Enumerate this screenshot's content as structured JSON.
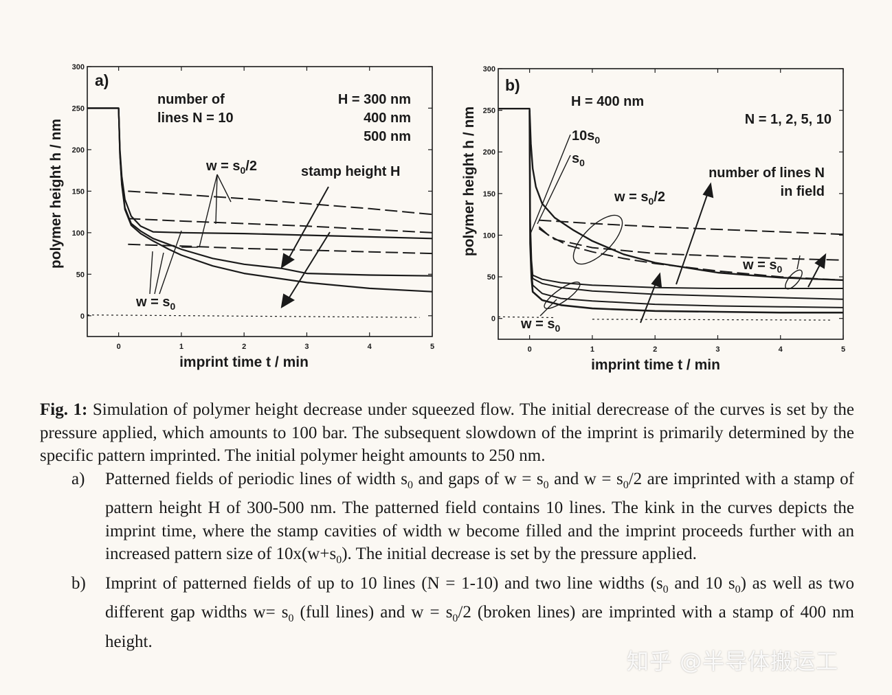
{
  "chart_data": [
    {
      "type": "line",
      "panel_label": "a)",
      "xlabel": "imprint time t / min",
      "ylabel": "polymer height h / nm",
      "xlim": [
        -0.5,
        5
      ],
      "ylim": [
        -25,
        300
      ],
      "xticks": [
        0,
        1,
        2,
        3,
        4,
        5
      ],
      "yticks": [
        0,
        50,
        100,
        150,
        200,
        250,
        300
      ],
      "annotations": {
        "lines_n": [
          "number of",
          "lines N = 10"
        ],
        "heights": [
          "H = 300 nm",
          "400 nm",
          "500 nm"
        ],
        "stamp": "stamp height H",
        "w_half": "w = s0/2",
        "w_full": "w = s0"
      },
      "series": [
        {
          "style": "solid",
          "width": 2.2,
          "points": [
            [
              -0.5,
              250
            ],
            [
              0,
              250
            ],
            [
              0.02,
              200
            ],
            [
              0.05,
              168
            ],
            [
              0.1,
              140
            ],
            [
              0.2,
              120
            ],
            [
              0.35,
              108
            ],
            [
              0.55,
              101
            ],
            [
              1,
              100
            ],
            [
              2,
              99
            ],
            [
              3,
              97
            ],
            [
              4,
              95
            ],
            [
              5,
              93
            ]
          ]
        },
        {
          "style": "solid",
          "width": 2.2,
          "points": [
            [
              -0.5,
              250
            ],
            [
              0,
              250
            ],
            [
              0.02,
              196
            ],
            [
              0.05,
              160
            ],
            [
              0.1,
              130
            ],
            [
              0.2,
              111
            ],
            [
              0.35,
              102
            ],
            [
              0.55,
              93
            ],
            [
              0.8,
              86
            ],
            [
              1,
              80
            ],
            [
              1.5,
              69
            ],
            [
              2,
              62
            ],
            [
              2.6,
              57
            ],
            [
              3,
              51
            ],
            [
              4,
              49
            ],
            [
              5,
              48
            ]
          ]
        },
        {
          "style": "solid",
          "width": 2.2,
          "points": [
            [
              -0.5,
              250
            ],
            [
              0,
              250
            ],
            [
              0.02,
              194
            ],
            [
              0.05,
              158
            ],
            [
              0.1,
              128
            ],
            [
              0.2,
              109
            ],
            [
              0.35,
              99
            ],
            [
              0.55,
              90
            ],
            [
              0.8,
              80
            ],
            [
              1,
              73
            ],
            [
              1.5,
              60
            ],
            [
              2,
              51
            ],
            [
              3,
              40
            ],
            [
              4,
              33
            ],
            [
              5,
              29
            ]
          ]
        },
        {
          "style": "dashed",
          "width": 2.0,
          "points": [
            [
              0.15,
              150
            ],
            [
              1,
              146
            ],
            [
              2,
              141
            ],
            [
              3,
              135
            ],
            [
              4,
              129
            ],
            [
              5,
              122
            ]
          ]
        },
        {
          "style": "dashed",
          "width": 2.0,
          "points": [
            [
              0.15,
              117
            ],
            [
              1,
              114
            ],
            [
              2,
              111
            ],
            [
              3,
              108
            ],
            [
              4,
              104
            ],
            [
              5,
              100
            ]
          ]
        },
        {
          "style": "dashed",
          "width": 2.0,
          "points": [
            [
              0.15,
              86
            ],
            [
              1,
              84
            ],
            [
              2,
              81
            ],
            [
              3,
              79
            ],
            [
              4,
              77
            ],
            [
              5,
              75
            ]
          ]
        },
        {
          "style": "dotted",
          "width": 1.2,
          "points": [
            [
              -0.5,
              1
            ],
            [
              4.8,
              -2
            ]
          ]
        }
      ]
    },
    {
      "type": "line",
      "panel_label": "b)",
      "xlabel": "imprint time t / min",
      "ylabel": "polymer height h / nm",
      "xlim": [
        -0.5,
        5
      ],
      "ylim": [
        -25,
        300
      ],
      "xticks": [
        0,
        1,
        2,
        3,
        4,
        5
      ],
      "yticks": [
        0,
        50,
        100,
        150,
        200,
        250,
        300
      ],
      "annotations": {
        "height": "H = 400 nm",
        "n_values": "N = 1, 2, 5, 10",
        "ten_s0": "10s0",
        "s0": "s0",
        "w_half": "w = s0/2",
        "lines_in_field": [
          "number of lines N",
          "in field"
        ],
        "w_full_right": "w = s0",
        "w_full_bottom": "w = s0"
      },
      "series": [
        {
          "style": "solid",
          "width": 2.4,
          "points": [
            [
              -0.5,
              252
            ],
            [
              0,
              252
            ],
            [
              0.02,
              210
            ],
            [
              0.05,
              180
            ],
            [
              0.1,
              158
            ],
            [
              0.2,
              138
            ],
            [
              0.4,
              121
            ],
            [
              0.7,
              106
            ],
            [
              1,
              93
            ],
            [
              1.5,
              77
            ],
            [
              2,
              67
            ],
            [
              3,
              55
            ],
            [
              4,
              49
            ],
            [
              5,
              46
            ]
          ]
        },
        {
          "style": "solid",
          "width": 2.0,
          "points": [
            [
              0,
              250
            ],
            [
              0.01,
              120
            ],
            [
              0.03,
              70
            ],
            [
              0.05,
              52
            ],
            [
              0.2,
              47
            ],
            [
              0.5,
              43
            ],
            [
              1,
              40
            ],
            [
              2,
              37
            ],
            [
              3,
              36
            ],
            [
              4,
              36
            ],
            [
              5,
              36
            ]
          ]
        },
        {
          "style": "solid",
          "width": 2.0,
          "points": [
            [
              0,
              250
            ],
            [
              0.01,
              110
            ],
            [
              0.03,
              62
            ],
            [
              0.05,
              48
            ],
            [
              0.2,
              42
            ],
            [
              0.5,
              37
            ],
            [
              1,
              33
            ],
            [
              2,
              29
            ],
            [
              3,
              27
            ],
            [
              4,
              25
            ],
            [
              5,
              23
            ]
          ]
        },
        {
          "style": "solid",
          "width": 2.0,
          "points": [
            [
              0,
              250
            ],
            [
              0.01,
              100
            ],
            [
              0.03,
              55
            ],
            [
              0.05,
              40
            ],
            [
              0.2,
              30
            ],
            [
              0.5,
              24
            ],
            [
              1,
              21
            ],
            [
              2,
              17
            ],
            [
              3,
              15
            ],
            [
              4,
              14
            ],
            [
              5,
              13
            ]
          ]
        },
        {
          "style": "solid",
          "width": 2.6,
          "points": [
            [
              0,
              250
            ],
            [
              0.01,
              90
            ],
            [
              0.03,
              48
            ],
            [
              0.05,
              32
            ],
            [
              0.2,
              22
            ],
            [
              0.5,
              16
            ],
            [
              1,
              12
            ],
            [
              2,
              9
            ],
            [
              3,
              8
            ],
            [
              4,
              7
            ],
            [
              5,
              7
            ]
          ]
        },
        {
          "style": "dashed",
          "width": 2.0,
          "points": [
            [
              0.15,
              118
            ],
            [
              1,
              114
            ],
            [
              2,
              110
            ],
            [
              3,
              107
            ],
            [
              4,
              104
            ],
            [
              5,
              101
            ]
          ]
        },
        {
          "style": "dashed",
          "width": 2.0,
          "points": [
            [
              0.15,
              110
            ],
            [
              0.3,
              100
            ],
            [
              0.6,
              88
            ],
            [
              1,
              80
            ],
            [
              1.5,
              72
            ],
            [
              2,
              66
            ],
            [
              3,
              57
            ],
            [
              4,
              50
            ],
            [
              5,
              46
            ]
          ]
        },
        {
          "style": "dashed",
          "width": 2.0,
          "points": [
            [
              0.15,
              108
            ],
            [
              0.4,
              95
            ],
            [
              1,
              85
            ],
            [
              2,
              78
            ],
            [
              3,
              75
            ],
            [
              4,
              72
            ],
            [
              5,
              70
            ]
          ]
        },
        {
          "style": "dotted",
          "width": 1.2,
          "points": [
            [
              -0.5,
              2
            ],
            [
              0.4,
              1
            ]
          ]
        },
        {
          "style": "dotted",
          "width": 1.2,
          "points": [
            [
              1,
              -1
            ],
            [
              4.8,
              -2
            ]
          ]
        }
      ]
    }
  ],
  "caption": {
    "fig_label": "Fig. 1:",
    "intro": "Simulation of polymer height decrease under squeezed flow. The initial derecrease of the curves is set by the pressure applied, which amounts to 100 bar. The subsequent slowdown of the imprint is primarily determined by the specific pattern imprinted. The initial polymer height amounts to  250 nm.",
    "item_a_marker": "a)",
    "item_a": "Patterned fields of periodic lines of width s0 and gaps of w = s0 and w = s0/2 are imprinted with a stamp of pattern height H of 300-500 nm. The patterned field contains 10 lines. The kink in the curves depicts the imprint time, where the stamp cavities of width w become filled and the imprint proceeds further with an increased pattern size of 10x(w+s0). The initial decrease is set by the pressure applied.",
    "item_b_marker": "b)",
    "item_b": "Imprint of patterned fields of up to 10 lines (N = 1-10) and two line widths (s0 and 10 s0) as well as two different gap widths w= s0 (full lines) and w = s0/2 (broken lines) are imprinted with a stamp of 400 nm height."
  },
  "watermark": "知乎 @半导体搬运工"
}
